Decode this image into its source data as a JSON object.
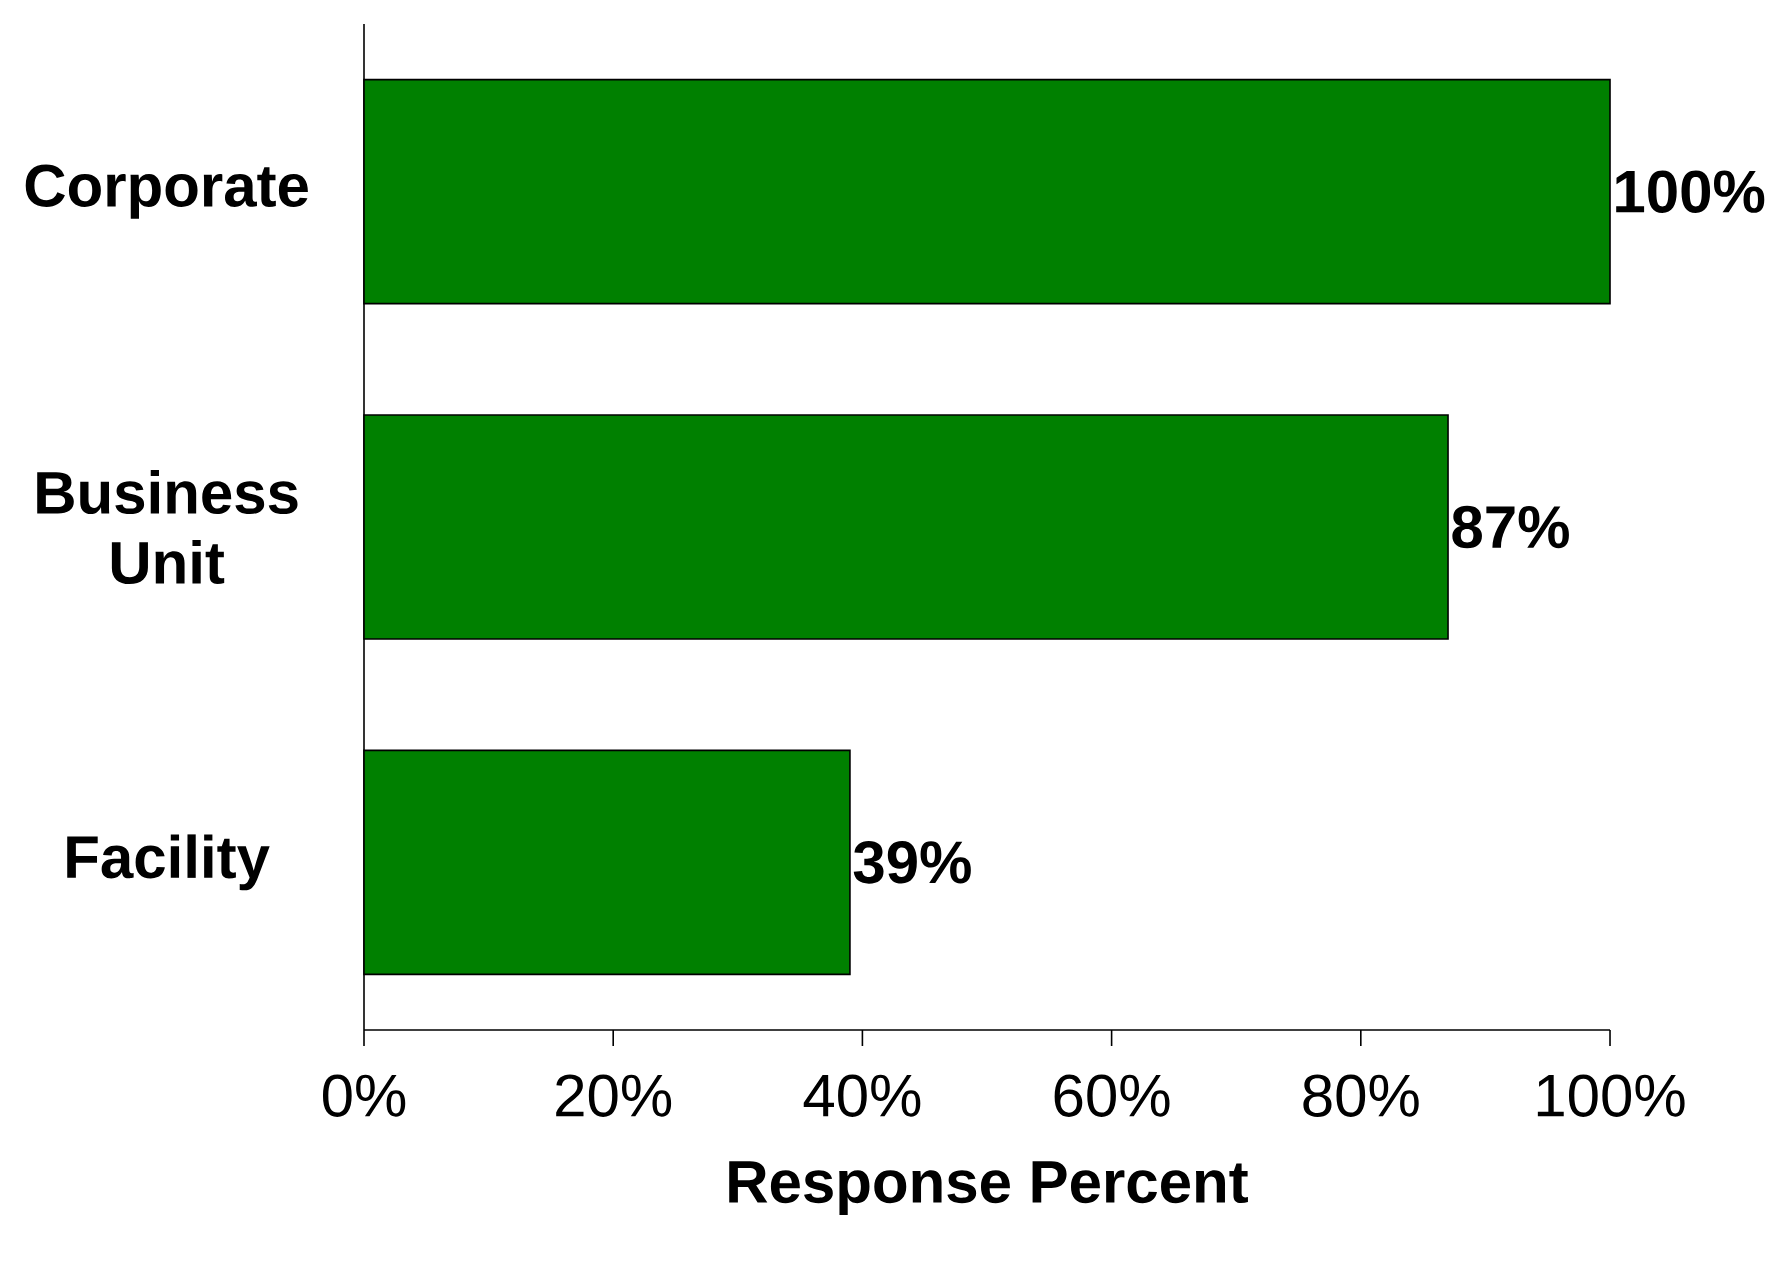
{
  "chart_data": {
    "type": "bar",
    "orientation": "horizontal",
    "categories": [
      "Corporate",
      "Business Unit",
      "Facility"
    ],
    "values": [
      100,
      87,
      39
    ],
    "value_labels": [
      "100%",
      "87%",
      "39%"
    ],
    "color": "#008000",
    "xlim": [
      0,
      100
    ],
    "xticks": [
      {
        "value": 0,
        "label": "0%"
      },
      {
        "value": 20,
        "label": "20%"
      },
      {
        "value": 40,
        "label": "40%"
      },
      {
        "value": 60,
        "label": "60%"
      },
      {
        "value": 80,
        "label": "80%"
      },
      {
        "value": 100,
        "label": "100%"
      }
    ],
    "xlabel": "Response Percent",
    "grid": false
  }
}
